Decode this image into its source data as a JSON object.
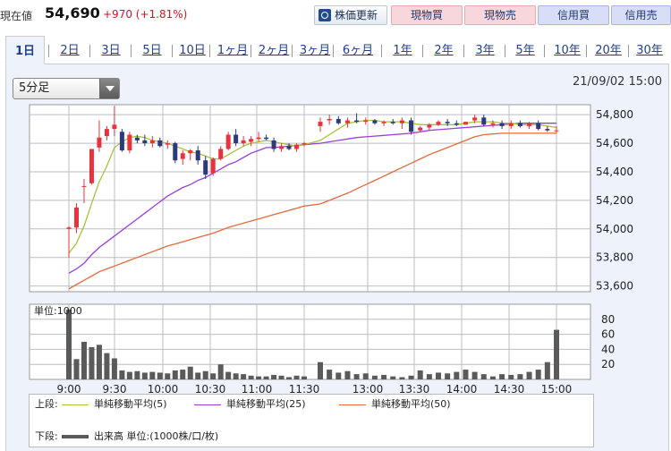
{
  "header": {
    "price_label": "現在値",
    "price": "54,690",
    "change": "+970 (+1.81%)",
    "refresh_label": "株価更新",
    "buttons": [
      "現物買",
      "現物売",
      "信用買",
      "信用売"
    ]
  },
  "tabs": [
    "1日",
    "2日",
    "3日",
    "5日",
    "10日",
    "1ヶ月",
    "2ヶ月",
    "3ヶ月",
    "6ヶ月",
    "1年",
    "2年",
    "3年",
    "5年",
    "10年",
    "20年",
    "30年"
  ],
  "active_tab": "1日",
  "interval_select": {
    "value": "5分足"
  },
  "timestamp": "21/09/02 15:00",
  "colors": {
    "up": "#e8323c",
    "down": "#2a3a7a",
    "ma5": "#a6c23a",
    "ma25": "#9a3fd6",
    "ma50": "#e56a3a",
    "volume": "#5a5a5a",
    "grid": "#b9bec6"
  },
  "chart_data": [
    {
      "type": "candlestick",
      "x_ticks": [
        "9:00",
        "9:30",
        "10:00",
        "10:30",
        "11:00",
        "11:30",
        "13:00",
        "13:30",
        "14:00",
        "14:30",
        "15:00"
      ],
      "y_ticks": [
        "54,800",
        "54,600",
        "54,400",
        "54,200",
        "54,000",
        "53,800",
        "53,600"
      ],
      "ylim": [
        53560,
        54870
      ],
      "candles": [
        {
          "o": 54000,
          "h": 54020,
          "l": 53800,
          "c": 54010
        },
        {
          "o": 54010,
          "h": 54180,
          "l": 53970,
          "c": 54150
        },
        {
          "o": 54300,
          "h": 54350,
          "l": 54180,
          "c": 54300
        },
        {
          "o": 54320,
          "h": 54560,
          "l": 54310,
          "c": 54560
        },
        {
          "o": 54570,
          "h": 54760,
          "l": 54540,
          "c": 54640
        },
        {
          "o": 54650,
          "h": 54720,
          "l": 54620,
          "c": 54700
        },
        {
          "o": 54700,
          "h": 54860,
          "l": 54650,
          "c": 54730
        },
        {
          "o": 54680,
          "h": 54700,
          "l": 54540,
          "c": 54550
        },
        {
          "o": 54550,
          "h": 54680,
          "l": 54530,
          "c": 54660
        },
        {
          "o": 54640,
          "h": 54660,
          "l": 54600,
          "c": 54620
        },
        {
          "o": 54620,
          "h": 54660,
          "l": 54580,
          "c": 54600
        },
        {
          "o": 54600,
          "h": 54650,
          "l": 54570,
          "c": 54620
        },
        {
          "o": 54620,
          "h": 54640,
          "l": 54570,
          "c": 54580
        },
        {
          "o": 54590,
          "h": 54620,
          "l": 54560,
          "c": 54600
        },
        {
          "o": 54600,
          "h": 54610,
          "l": 54460,
          "c": 54480
        },
        {
          "o": 54490,
          "h": 54550,
          "l": 54450,
          "c": 54530
        },
        {
          "o": 54530,
          "h": 54560,
          "l": 54480,
          "c": 54550
        },
        {
          "o": 54550,
          "h": 54580,
          "l": 54450,
          "c": 54480
        },
        {
          "o": 54480,
          "h": 54510,
          "l": 54350,
          "c": 54380
        },
        {
          "o": 54390,
          "h": 54500,
          "l": 54370,
          "c": 54490
        },
        {
          "o": 54490,
          "h": 54580,
          "l": 54480,
          "c": 54560
        },
        {
          "o": 54560,
          "h": 54680,
          "l": 54550,
          "c": 54660
        },
        {
          "o": 54660,
          "h": 54700,
          "l": 54580,
          "c": 54600
        },
        {
          "o": 54600,
          "h": 54650,
          "l": 54580,
          "c": 54620
        },
        {
          "o": 54610,
          "h": 54650,
          "l": 54580,
          "c": 54630
        },
        {
          "o": 54630,
          "h": 54680,
          "l": 54610,
          "c": 54640
        },
        {
          "o": 54640,
          "h": 54660,
          "l": 54620,
          "c": 54630
        },
        {
          "o": 54620,
          "h": 54640,
          "l": 54540,
          "c": 54560
        },
        {
          "o": 54560,
          "h": 54600,
          "l": 54540,
          "c": 54580
        },
        {
          "o": 54580,
          "h": 54600,
          "l": 54550,
          "c": 54560
        },
        {
          "o": 54560,
          "h": 54600,
          "l": 54540,
          "c": 54590
        },
        {
          "o": 54590,
          "h": 54610,
          "l": 54580,
          "c": 54600
        },
        {
          "o": 54720,
          "h": 54780,
          "l": 54680,
          "c": 54750
        },
        {
          "o": 54760,
          "h": 54800,
          "l": 54730,
          "c": 54770
        },
        {
          "o": 54770,
          "h": 54790,
          "l": 54730,
          "c": 54740
        },
        {
          "o": 54740,
          "h": 54780,
          "l": 54710,
          "c": 54760
        },
        {
          "o": 54760,
          "h": 54810,
          "l": 54740,
          "c": 54750
        },
        {
          "o": 54750,
          "h": 54780,
          "l": 54730,
          "c": 54760
        },
        {
          "o": 54760,
          "h": 54770,
          "l": 54730,
          "c": 54740
        },
        {
          "o": 54740,
          "h": 54760,
          "l": 54720,
          "c": 54750
        },
        {
          "o": 54750,
          "h": 54770,
          "l": 54730,
          "c": 54740
        },
        {
          "o": 54740,
          "h": 54780,
          "l": 54700,
          "c": 54760
        },
        {
          "o": 54760,
          "h": 54780,
          "l": 54660,
          "c": 54680
        },
        {
          "o": 54690,
          "h": 54720,
          "l": 54680,
          "c": 54710
        },
        {
          "o": 54710,
          "h": 54740,
          "l": 54690,
          "c": 54730
        },
        {
          "o": 54730,
          "h": 54760,
          "l": 54720,
          "c": 54750
        },
        {
          "o": 54750,
          "h": 54770,
          "l": 54720,
          "c": 54740
        },
        {
          "o": 54740,
          "h": 54760,
          "l": 54720,
          "c": 54730
        },
        {
          "o": 54730,
          "h": 54750,
          "l": 54730,
          "c": 54750
        },
        {
          "o": 54760,
          "h": 54800,
          "l": 54740,
          "c": 54780
        },
        {
          "o": 54780,
          "h": 54800,
          "l": 54720,
          "c": 54730
        },
        {
          "o": 54730,
          "h": 54760,
          "l": 54710,
          "c": 54740
        },
        {
          "o": 54740,
          "h": 54760,
          "l": 54700,
          "c": 54720
        },
        {
          "o": 54720,
          "h": 54760,
          "l": 54700,
          "c": 54740
        },
        {
          "o": 54740,
          "h": 54760,
          "l": 54710,
          "c": 54720
        },
        {
          "o": 54720,
          "h": 54750,
          "l": 54700,
          "c": 54740
        },
        {
          "o": 54740,
          "h": 54760,
          "l": 54690,
          "c": 54700
        },
        {
          "o": 54700,
          "h": 54720,
          "l": 54680,
          "c": 54690
        },
        {
          "o": 54690,
          "h": 54720,
          "l": 54670,
          "c": 54690
        }
      ],
      "ma5": [
        53830,
        53900,
        54020,
        54180,
        54330,
        54440,
        54570,
        54610,
        54640,
        54650,
        54640,
        54620,
        54610,
        54600,
        54580,
        54560,
        54540,
        54530,
        54510,
        54490,
        54490,
        54520,
        54550,
        54580,
        54600,
        54610,
        54620,
        54610,
        54600,
        54590,
        54580,
        54590,
        54620,
        54660,
        54700,
        54740,
        54750,
        54760,
        54760,
        54750,
        54750,
        54750,
        54740,
        54730,
        54730,
        54730,
        54730,
        54730,
        54740,
        54750,
        54750,
        54750,
        54740,
        54740,
        54730,
        54730,
        54730,
        54720,
        54710
      ],
      "ma25": [
        53690,
        53720,
        53760,
        53820,
        53870,
        53910,
        53950,
        53990,
        54030,
        54070,
        54110,
        54150,
        54190,
        54230,
        54260,
        54290,
        54310,
        54340,
        54360,
        54390,
        54420,
        54450,
        54470,
        54500,
        54530,
        54550,
        54570,
        54570,
        54575,
        54580,
        54585,
        54590,
        54600,
        54610,
        54620,
        54630,
        54640,
        54645,
        54650,
        54655,
        54660,
        54665,
        54670,
        54680,
        54690,
        54695,
        54700,
        54705,
        54710,
        54715,
        54720,
        54725,
        54730,
        54735,
        54740,
        54740,
        54740,
        54740,
        54740
      ],
      "ma50": [
        53580,
        53610,
        53640,
        53670,
        53700,
        53720,
        53740,
        53760,
        53780,
        53800,
        53820,
        53840,
        53860,
        53880,
        53895,
        53910,
        53925,
        53940,
        53955,
        53970,
        53990,
        54010,
        54025,
        54040,
        54055,
        54070,
        54085,
        54100,
        54115,
        54130,
        54145,
        54160,
        54175,
        54200,
        54225,
        54250,
        54280,
        54310,
        54340,
        54370,
        54400,
        54430,
        54460,
        54490,
        54520,
        54545,
        54570,
        54595,
        54620,
        54645,
        54660,
        54665,
        54670,
        54670,
        54670,
        54670,
        54670,
        54670,
        54670
      ]
    },
    {
      "type": "bar",
      "title": "単位:1000",
      "y_ticks": [
        "80",
        "60",
        "40",
        "20"
      ],
      "ylim": [
        0,
        100
      ],
      "values": [
        93,
        27,
        50,
        43,
        46,
        35,
        28,
        12,
        10,
        11,
        9,
        10,
        9,
        8,
        12,
        13,
        17,
        9,
        11,
        8,
        20,
        10,
        8,
        7,
        5,
        4,
        4,
        6,
        5,
        3,
        5,
        4,
        23,
        13,
        9,
        11,
        7,
        8,
        5,
        6,
        4,
        3,
        5,
        12,
        7,
        9,
        8,
        10,
        13,
        10,
        7,
        4,
        7,
        6,
        7,
        10,
        13,
        23,
        66
      ]
    }
  ],
  "legend": {
    "upper_label": "上段:",
    "lower_label": "下段:",
    "ma5": "単純移動平均(5)",
    "ma25": "単純移動平均(25)",
    "ma50": "単純移動平均(50)",
    "volume": "出来高 単位:(1000株/口/枚)"
  }
}
